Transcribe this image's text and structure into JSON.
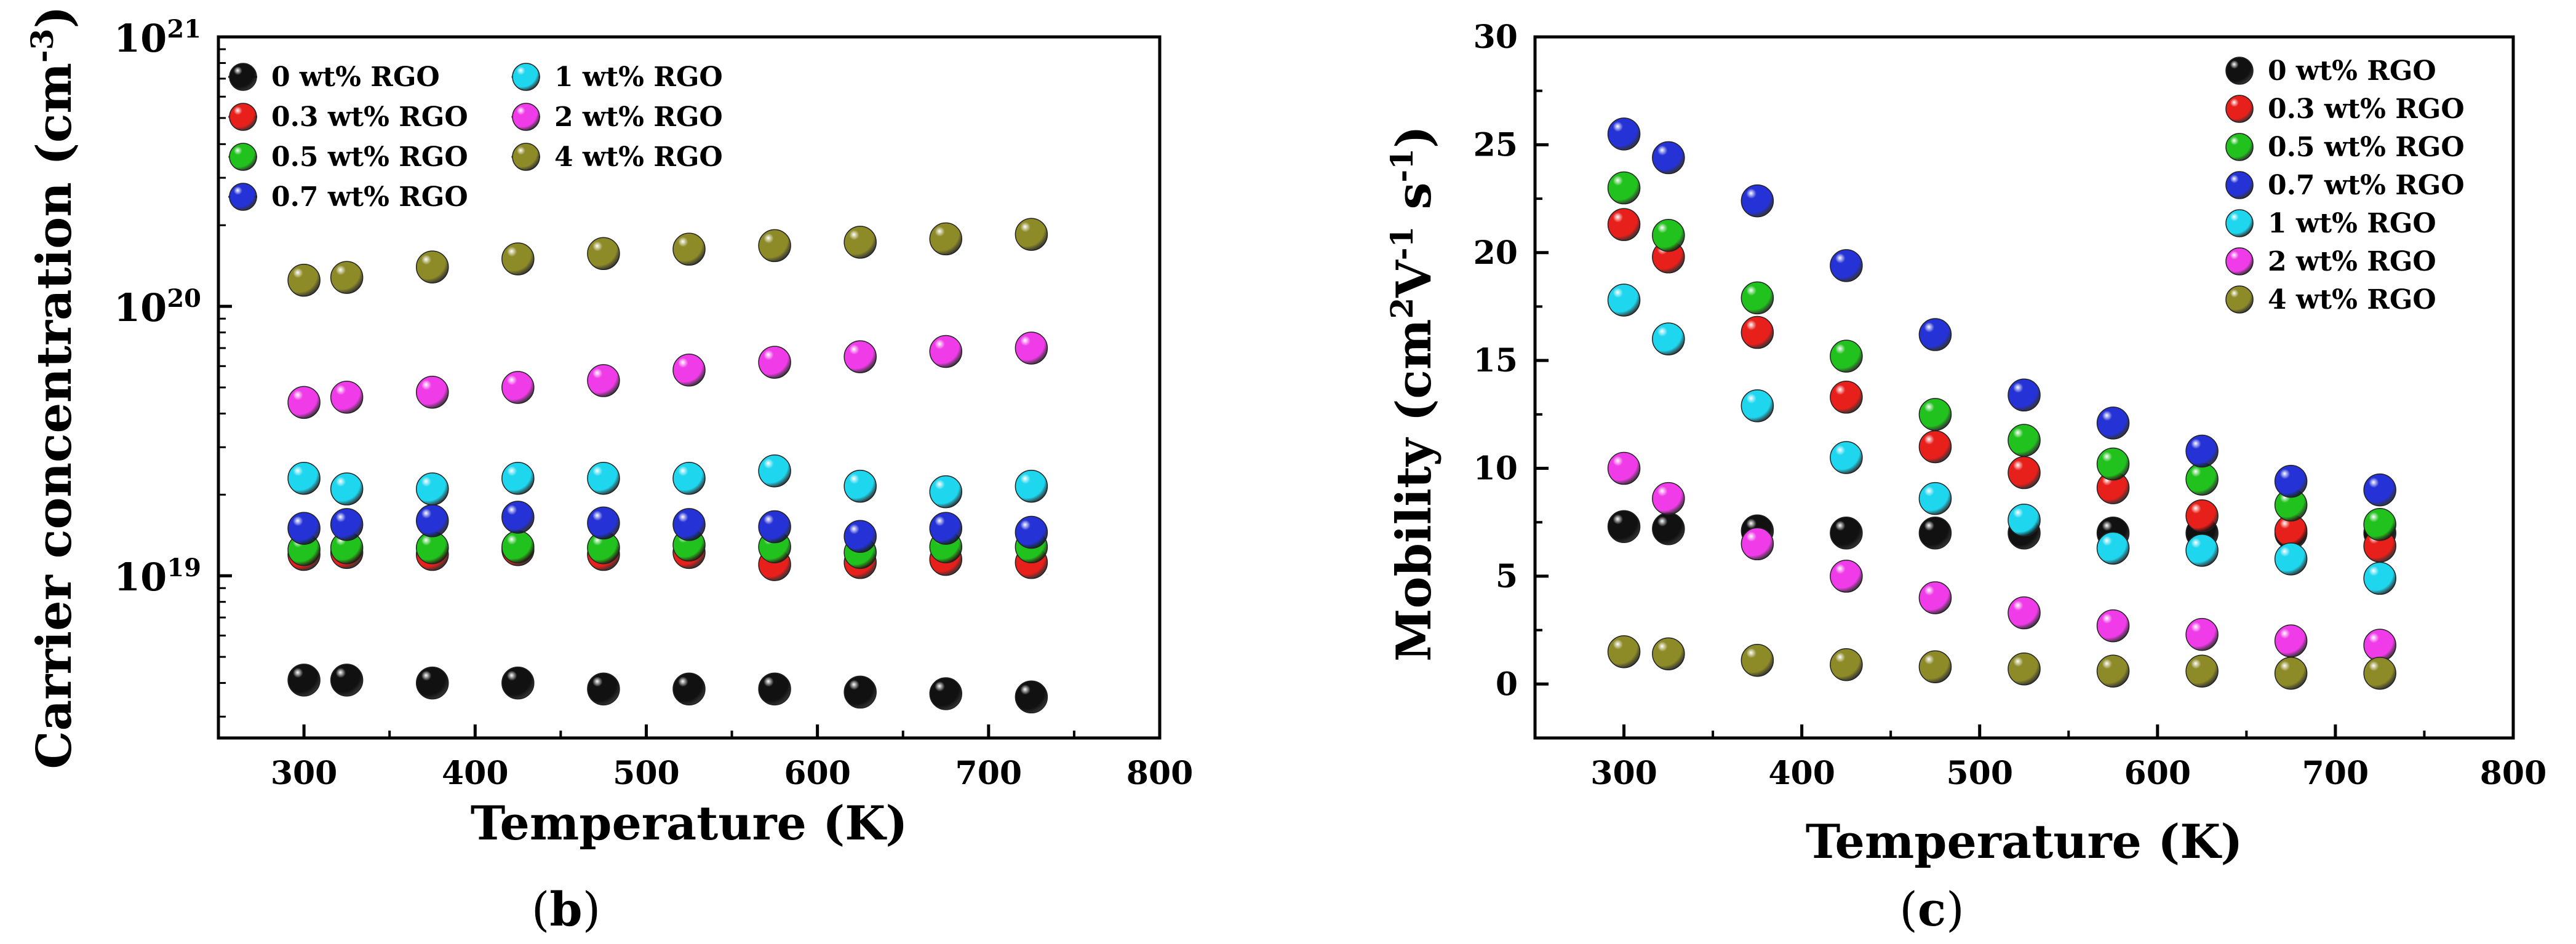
{
  "colors": {
    "0 wt% RGO": "#111111",
    "0.3 wt% RGO": "#e8201c",
    "0.5 wt% RGO": "#22c21e",
    "0.7 wt% RGO": "#2533d6",
    "1 wt% RGO": "#1fd6ef",
    "2 wt% RGO": "#f03ce8",
    "4 wt% RGO": "#8d8a28"
  },
  "chart_data": [
    {
      "type": "scatter",
      "panel_label": "(b)",
      "panel_letter": "b",
      "title": "",
      "xlabel": "Temperature (K)",
      "ylabel": "Carrier concentration (cm-3)",
      "ylabel_main": "Carrier concentration (cm",
      "ylabel_sup": "-3",
      "ylabel_close": ")",
      "yscale": "log",
      "xlim": [
        250,
        800
      ],
      "ylim": [
        2.5e+18,
        1e+21
      ],
      "xticks": [
        300,
        400,
        500,
        600,
        700,
        800
      ],
      "yticks": [
        {
          "value": 1e+19,
          "base": "10",
          "exp": "19"
        },
        {
          "value": 1e+20,
          "base": "10",
          "exp": "20"
        },
        {
          "value": 1e+21,
          "base": "10",
          "exp": "21"
        }
      ],
      "legend_layout": "two columns, top-left",
      "legend_columns": [
        [
          "0 wt% RGO",
          "0.3 wt% RGO",
          "0.5 wt% RGO",
          "0.7 wt% RGO"
        ],
        [
          "1 wt% RGO",
          "2 wt% RGO",
          "4 wt% RGO"
        ]
      ],
      "series": [
        {
          "name": "0 wt% RGO",
          "x": [
            300,
            325,
            375,
            425,
            475,
            525,
            575,
            625,
            675,
            725
          ],
          "y": [
            4.1e+18,
            4.1e+18,
            4e+18,
            4e+18,
            3.8e+18,
            3.8e+18,
            3.8e+18,
            3.7e+18,
            3.65e+18,
            3.55e+18
          ]
        },
        {
          "name": "0.3 wt% RGO",
          "x": [
            300,
            325,
            375,
            425,
            475,
            525,
            575,
            625,
            675,
            725
          ],
          "y": [
            1.2e+19,
            1.22e+19,
            1.2e+19,
            1.25e+19,
            1.2e+19,
            1.22e+19,
            1.1e+19,
            1.12e+19,
            1.15e+19,
            1.12e+19
          ]
        },
        {
          "name": "0.5 wt% RGO",
          "x": [
            300,
            325,
            375,
            425,
            475,
            525,
            575,
            625,
            675,
            725
          ],
          "y": [
            1.25e+19,
            1.27e+19,
            1.27e+19,
            1.28e+19,
            1.27e+19,
            1.3e+19,
            1.28e+19,
            1.22e+19,
            1.28e+19,
            1.28e+19
          ]
        },
        {
          "name": "0.7 wt% RGO",
          "x": [
            300,
            325,
            375,
            425,
            475,
            525,
            575,
            625,
            675,
            725
          ],
          "y": [
            1.5e+19,
            1.55e+19,
            1.6e+19,
            1.65e+19,
            1.57e+19,
            1.55e+19,
            1.52e+19,
            1.4e+19,
            1.5e+19,
            1.45e+19
          ]
        },
        {
          "name": "1 wt% RGO",
          "x": [
            300,
            325,
            375,
            425,
            475,
            525,
            575,
            625,
            675,
            725
          ],
          "y": [
            2.3e+19,
            2.1e+19,
            2.1e+19,
            2.3e+19,
            2.3e+19,
            2.3e+19,
            2.45e+19,
            2.15e+19,
            2.05e+19,
            2.15e+19
          ]
        },
        {
          "name": "2 wt% RGO",
          "x": [
            300,
            325,
            375,
            425,
            475,
            525,
            575,
            625,
            675,
            725
          ],
          "y": [
            4.4e+19,
            4.6e+19,
            4.8e+19,
            5e+19,
            5.3e+19,
            5.8e+19,
            6.2e+19,
            6.5e+19,
            6.8e+19,
            7e+19
          ]
        },
        {
          "name": "4 wt% RGO",
          "x": [
            300,
            325,
            375,
            425,
            475,
            525,
            575,
            625,
            675,
            725
          ],
          "y": [
            1.25e+20,
            1.28e+20,
            1.4e+20,
            1.5e+20,
            1.57e+20,
            1.63e+20,
            1.68e+20,
            1.73e+20,
            1.78e+20,
            1.85e+20
          ]
        }
      ]
    },
    {
      "type": "scatter",
      "panel_label": "(c)",
      "panel_letter": "c",
      "title": "",
      "xlabel": "Temperature (K)",
      "ylabel": "Mobility (cm2V-1 s-1)",
      "ylabel_main": "Mobility (cm",
      "ylabel_sup1": "2",
      "ylabel_mid": "V",
      "ylabel_sup2": "-1",
      "ylabel_mid2": " s",
      "ylabel_sup3": "-1",
      "ylabel_close": ")",
      "yscale": "linear",
      "xlim": [
        250,
        800
      ],
      "ylim": [
        -2.5,
        30
      ],
      "xticks": [
        300,
        400,
        500,
        600,
        700,
        800
      ],
      "yticks": [
        0,
        5,
        10,
        15,
        20,
        25,
        30
      ],
      "legend_layout": "single column, top-right",
      "legend_columns": [
        [
          "0 wt% RGO",
          "0.3 wt% RGO",
          "0.5 wt% RGO",
          "0.7 wt% RGO",
          "1 wt% RGO",
          "2 wt% RGO",
          "4 wt% RGO"
        ]
      ],
      "series": [
        {
          "name": "0 wt% RGO",
          "x": [
            300,
            325,
            375,
            425,
            475,
            525,
            575,
            625,
            675,
            725
          ],
          "y": [
            7.3,
            7.2,
            7.1,
            7.0,
            7.0,
            7.0,
            7.0,
            7.0,
            7.0,
            7.0
          ]
        },
        {
          "name": "0.3 wt% RGO",
          "x": [
            300,
            325,
            375,
            425,
            475,
            525,
            575,
            625,
            675,
            725
          ],
          "y": [
            21.3,
            19.8,
            16.3,
            13.3,
            11.0,
            9.8,
            9.1,
            7.8,
            7.1,
            6.4
          ]
        },
        {
          "name": "0.5 wt% RGO",
          "x": [
            300,
            325,
            375,
            425,
            475,
            525,
            575,
            625,
            675,
            725
          ],
          "y": [
            23.0,
            20.8,
            17.9,
            15.2,
            12.5,
            11.3,
            10.2,
            9.5,
            8.3,
            7.4
          ]
        },
        {
          "name": "0.7 wt% RGO",
          "x": [
            300,
            325,
            375,
            425,
            475,
            525,
            575,
            625,
            675,
            725
          ],
          "y": [
            25.5,
            24.4,
            22.4,
            19.4,
            16.2,
            13.4,
            12.1,
            10.8,
            9.4,
            9.0
          ]
        },
        {
          "name": "1 wt% RGO",
          "x": [
            300,
            325,
            375,
            425,
            475,
            525,
            575,
            625,
            675,
            725
          ],
          "y": [
            17.8,
            16.0,
            12.9,
            10.5,
            8.6,
            7.6,
            6.3,
            6.2,
            5.8,
            4.9
          ]
        },
        {
          "name": "2 wt% RGO",
          "x": [
            300,
            325,
            375,
            425,
            475,
            525,
            575,
            625,
            675,
            725
          ],
          "y": [
            10.0,
            8.6,
            6.5,
            5.0,
            4.0,
            3.3,
            2.7,
            2.3,
            2.0,
            1.8
          ]
        },
        {
          "name": "4 wt% RGO",
          "x": [
            300,
            325,
            375,
            425,
            475,
            525,
            575,
            625,
            675,
            725
          ],
          "y": [
            1.5,
            1.4,
            1.1,
            0.9,
            0.8,
            0.7,
            0.6,
            0.6,
            0.5,
            0.5
          ]
        }
      ]
    }
  ]
}
